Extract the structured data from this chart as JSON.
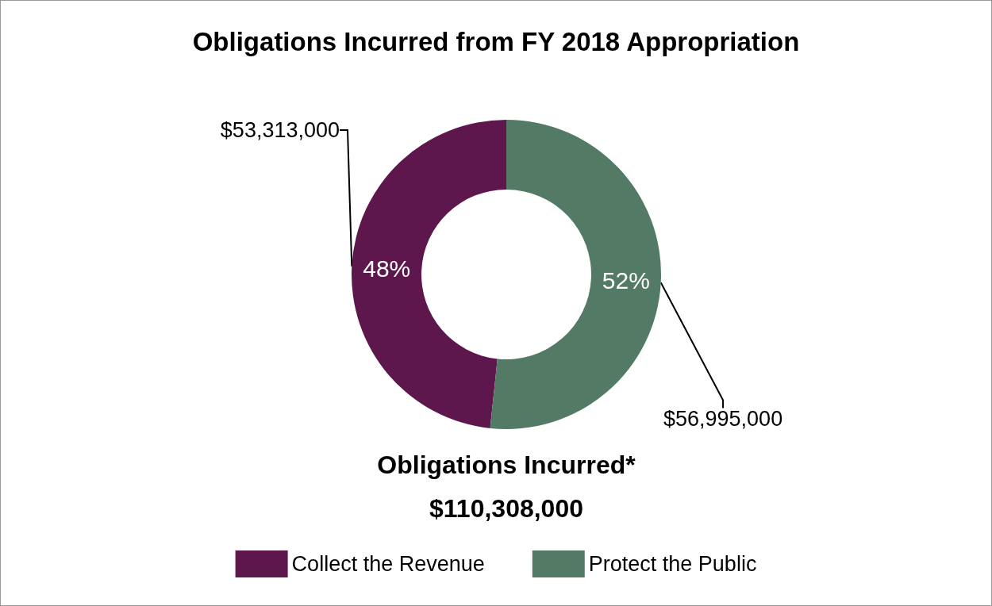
{
  "chart_data": {
    "type": "donut",
    "title": "Obligations Incurred from FY 2018 Appropriation",
    "categories": [
      "Collect the Revenue",
      "Protect the Public"
    ],
    "values": [
      53313000,
      56995000
    ],
    "colors": [
      "#5e174d",
      "#527a65"
    ],
    "value_labels": [
      "$53,313,000",
      "$56,995,000"
    ],
    "annotations": [
      {
        "text": "48%",
        "x": "Collect the Revenue"
      },
      {
        "text": "52%",
        "x": "Protect the Public"
      },
      "Obligations Incurred*",
      "$110,308,000"
    ],
    "legend": "bottom"
  }
}
